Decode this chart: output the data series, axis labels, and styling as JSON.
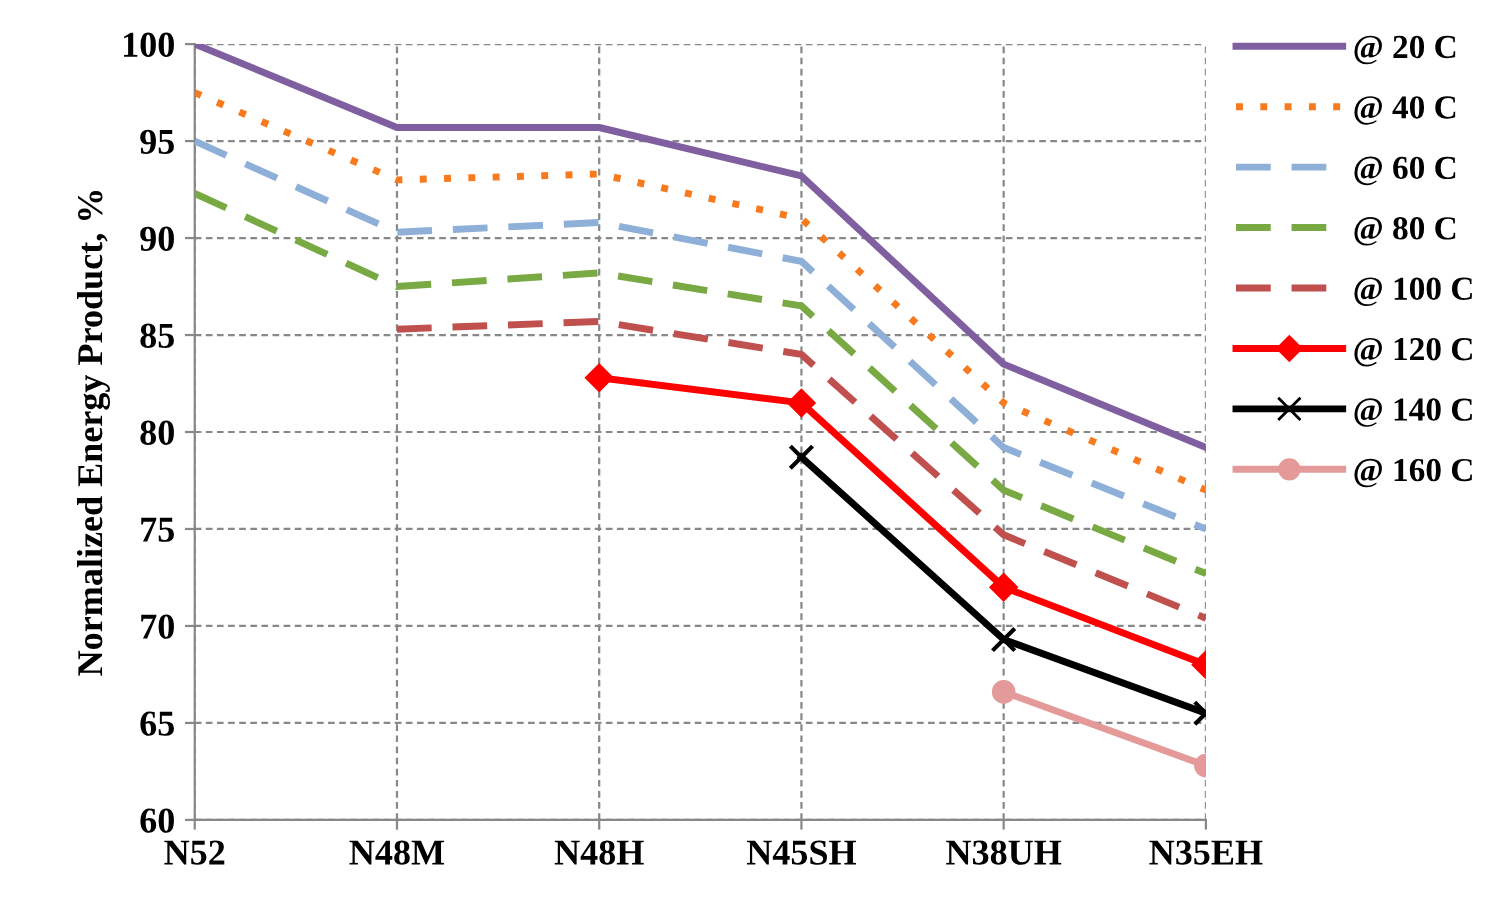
{
  "chart_data": {
    "type": "line",
    "ylabel": "Normalized Energy Product, %",
    "categories": [
      "N52",
      "N48M",
      "N48H",
      "N45SH",
      "N38UH",
      "N35EH"
    ],
    "ylim": [
      60,
      100
    ],
    "yticks": [
      60,
      65,
      70,
      75,
      80,
      85,
      90,
      95,
      100
    ],
    "grid": true,
    "legend": "right",
    "series": [
      {
        "name": "@ 20 C",
        "color": "#7f5fa0",
        "line_style": "solid",
        "marker": "none",
        "values": [
          100,
          95.7,
          95.7,
          93.2,
          83.5,
          79.2
        ]
      },
      {
        "name": "@ 40 C",
        "color": "#f77b1e",
        "line_style": "dotted",
        "marker": "none",
        "values": [
          97.5,
          93,
          93.3,
          91,
          81.5,
          77
        ]
      },
      {
        "name": "@ 60 C",
        "color": "#8eb0d8",
        "line_style": "dashed",
        "marker": "none",
        "values": [
          95,
          90.3,
          90.8,
          88.8,
          79.2,
          75
        ]
      },
      {
        "name": "@ 80 C",
        "color": "#78a943",
        "line_style": "dashed",
        "marker": "none",
        "values": [
          92.3,
          87.5,
          88.2,
          86.5,
          77,
          72.7
        ]
      },
      {
        "name": "@ 100 C",
        "color": "#c0504d",
        "line_style": "dashed",
        "marker": "none",
        "values": [
          null,
          85.3,
          85.7,
          84,
          74.7,
          70.4
        ]
      },
      {
        "name": "@ 120 C",
        "color": "#ff0000",
        "line_style": "solid",
        "marker": "diamond",
        "values": [
          null,
          null,
          82.8,
          81.5,
          72,
          68
        ]
      },
      {
        "name": "@ 140 C",
        "color": "#000000",
        "line_style": "solid",
        "marker": "cross",
        "values": [
          null,
          null,
          null,
          78.7,
          69.3,
          65.5
        ]
      },
      {
        "name": "@ 160 C",
        "color": "#e59a9a",
        "line_style": "solid",
        "marker": "circle",
        "values": [
          null,
          null,
          null,
          null,
          66.6,
          62.8
        ]
      }
    ]
  }
}
